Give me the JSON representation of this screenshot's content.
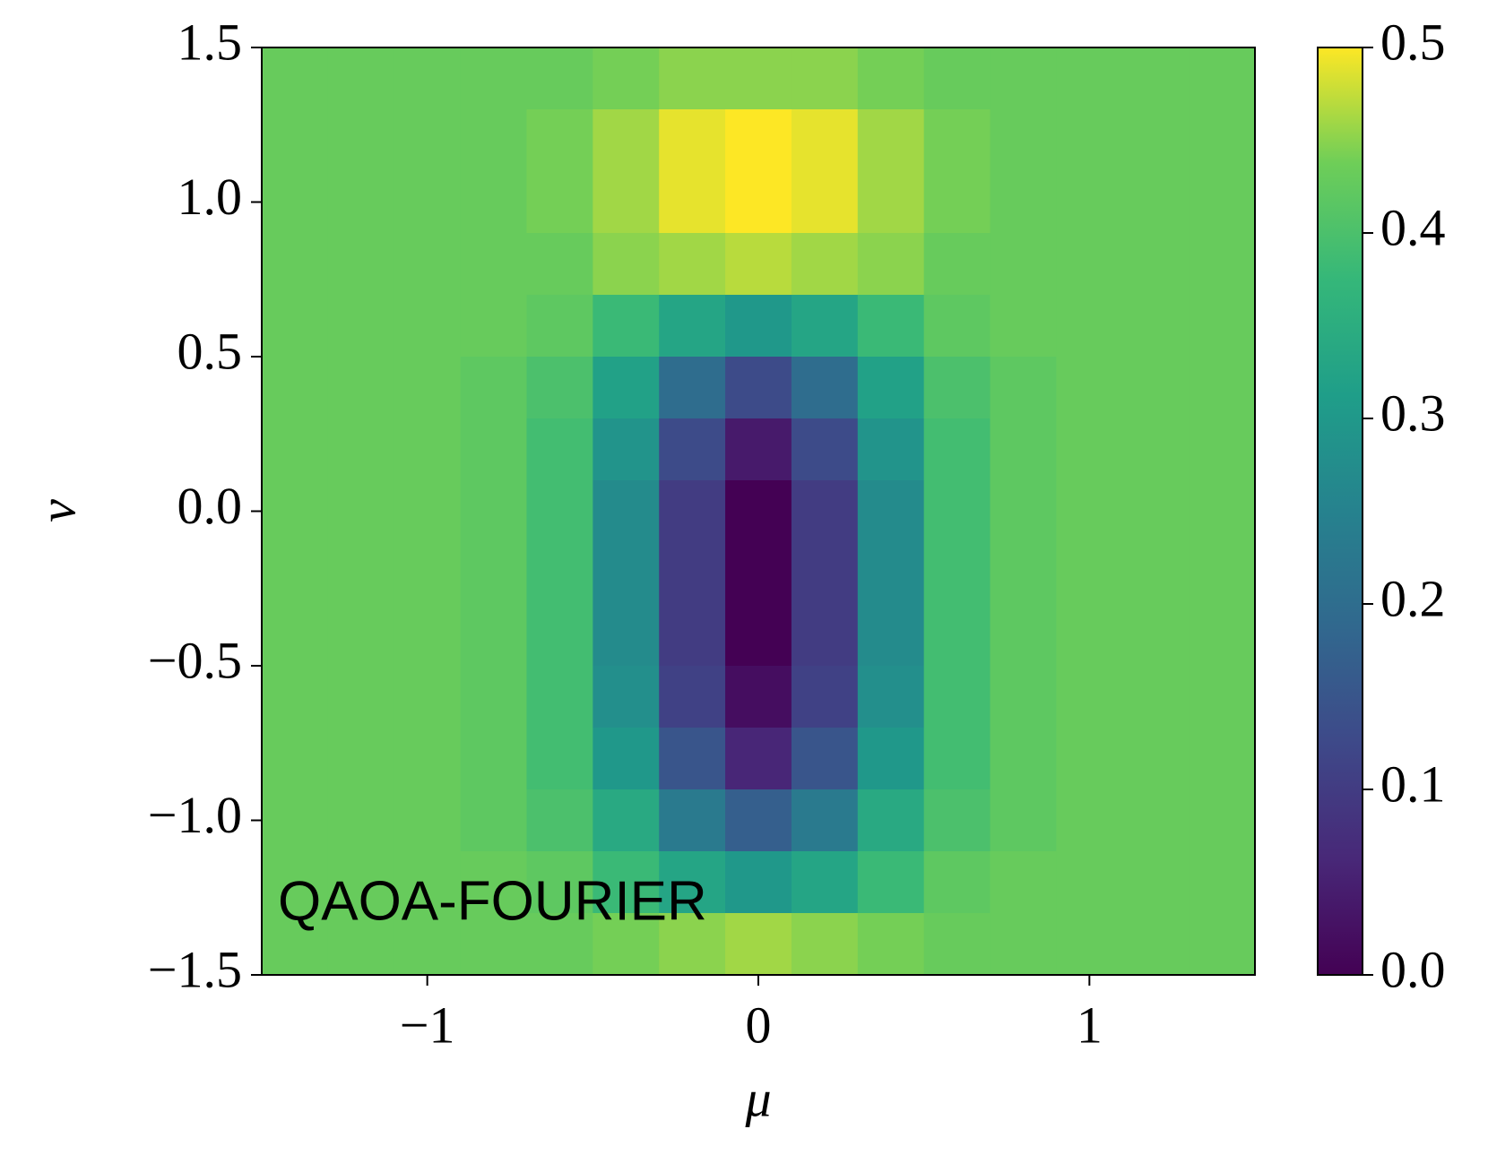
{
  "chart_data": {
    "type": "heatmap",
    "xlabel": "μ",
    "ylabel": "ν",
    "annotation": "QAOA-FOURIER",
    "colormap": "viridis",
    "x": [
      -1.4,
      -1.2,
      -1.0,
      -0.8,
      -0.6,
      -0.4,
      -0.2,
      0.0,
      0.2,
      0.4,
      0.6,
      0.8,
      1.0,
      1.2,
      1.4
    ],
    "y": [
      1.4,
      1.2,
      1.0,
      0.8,
      0.6,
      0.4,
      0.2,
      0.0,
      -0.2,
      -0.4,
      -0.6,
      -0.8,
      -1.0,
      -1.2,
      -1.4
    ],
    "values": [
      [
        0.43,
        0.43,
        0.43,
        0.43,
        0.43,
        0.44,
        0.45,
        0.45,
        0.45,
        0.44,
        0.43,
        0.43,
        0.43,
        0.43,
        0.43
      ],
      [
        0.43,
        0.43,
        0.43,
        0.43,
        0.44,
        0.46,
        0.49,
        0.5,
        0.49,
        0.46,
        0.44,
        0.43,
        0.43,
        0.43,
        0.43
      ],
      [
        0.43,
        0.43,
        0.43,
        0.43,
        0.44,
        0.46,
        0.49,
        0.5,
        0.49,
        0.46,
        0.44,
        0.43,
        0.43,
        0.43,
        0.43
      ],
      [
        0.43,
        0.43,
        0.43,
        0.43,
        0.43,
        0.45,
        0.46,
        0.47,
        0.46,
        0.45,
        0.43,
        0.43,
        0.43,
        0.43,
        0.43
      ],
      [
        0.43,
        0.43,
        0.43,
        0.43,
        0.42,
        0.38,
        0.33,
        0.3,
        0.33,
        0.38,
        0.42,
        0.43,
        0.43,
        0.43,
        0.43
      ],
      [
        0.43,
        0.43,
        0.43,
        0.42,
        0.4,
        0.32,
        0.2,
        0.13,
        0.2,
        0.32,
        0.4,
        0.42,
        0.43,
        0.43,
        0.43
      ],
      [
        0.43,
        0.43,
        0.43,
        0.42,
        0.39,
        0.29,
        0.13,
        0.04,
        0.13,
        0.29,
        0.39,
        0.42,
        0.43,
        0.43,
        0.43
      ],
      [
        0.43,
        0.43,
        0.43,
        0.42,
        0.39,
        0.27,
        0.1,
        0.0,
        0.1,
        0.27,
        0.39,
        0.42,
        0.43,
        0.43,
        0.43
      ],
      [
        0.43,
        0.43,
        0.43,
        0.42,
        0.39,
        0.27,
        0.1,
        0.0,
        0.1,
        0.27,
        0.39,
        0.42,
        0.43,
        0.43,
        0.43
      ],
      [
        0.43,
        0.43,
        0.43,
        0.42,
        0.39,
        0.27,
        0.1,
        0.0,
        0.1,
        0.27,
        0.39,
        0.42,
        0.43,
        0.43,
        0.43
      ],
      [
        0.43,
        0.43,
        0.43,
        0.42,
        0.39,
        0.28,
        0.11,
        0.02,
        0.11,
        0.28,
        0.39,
        0.42,
        0.43,
        0.43,
        0.43
      ],
      [
        0.43,
        0.43,
        0.43,
        0.42,
        0.39,
        0.3,
        0.15,
        0.06,
        0.15,
        0.3,
        0.39,
        0.42,
        0.43,
        0.43,
        0.43
      ],
      [
        0.43,
        0.43,
        0.43,
        0.42,
        0.4,
        0.34,
        0.23,
        0.17,
        0.23,
        0.34,
        0.4,
        0.42,
        0.43,
        0.43,
        0.43
      ],
      [
        0.43,
        0.43,
        0.43,
        0.43,
        0.42,
        0.38,
        0.33,
        0.3,
        0.33,
        0.38,
        0.42,
        0.43,
        0.43,
        0.43,
        0.43
      ],
      [
        0.43,
        0.43,
        0.43,
        0.43,
        0.43,
        0.44,
        0.45,
        0.46,
        0.45,
        0.44,
        0.43,
        0.43,
        0.43,
        0.43,
        0.43
      ]
    ],
    "xlim": [
      -1.5,
      1.5
    ],
    "ylim": [
      -1.5,
      1.5
    ],
    "xticks": [
      {
        "value": -1,
        "label": "−1"
      },
      0,
      1
    ],
    "yticks": [
      {
        "value": -1.5,
        "label": "−1.5"
      },
      {
        "value": -1.0,
        "label": "−1.0"
      },
      {
        "value": -0.5,
        "label": "−0.5"
      },
      {
        "value": 0,
        "label": "0.0"
      },
      0.5,
      {
        "value": 1.0,
        "label": "1.0"
      },
      1.5
    ],
    "clim": [
      0,
      0.5
    ],
    "cticks": [
      {
        "value": 0,
        "label": "0.0"
      },
      0.1,
      0.2,
      0.3,
      0.4,
      0.5
    ]
  }
}
